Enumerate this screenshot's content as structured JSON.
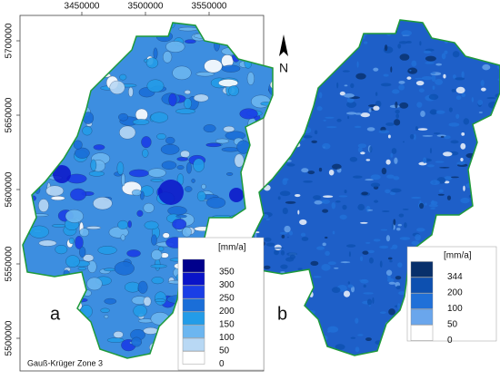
{
  "map_a": {
    "label": "a",
    "x_ticks": [
      "3450000",
      "3500000",
      "3550000"
    ],
    "y_ticks": [
      "5700000",
      "5650000",
      "5600000",
      "5550000",
      "5500000"
    ],
    "legend": {
      "unit": "[mm/a]",
      "classes": [
        {
          "label": "350",
          "color": "#00008c"
        },
        {
          "label": "300",
          "color": "#0a14c8"
        },
        {
          "label": "250",
          "color": "#1a3ee6"
        },
        {
          "label": "200",
          "color": "#1a6ed8"
        },
        {
          "label": "150",
          "color": "#239ce8"
        },
        {
          "label": "100",
          "color": "#6cb6f0"
        },
        {
          "label": "50",
          "color": "#b8d8f4"
        },
        {
          "label": "0",
          "color": "#ffffff"
        }
      ]
    }
  },
  "map_b": {
    "label": "b",
    "legend": {
      "unit": "[mm/a]",
      "classes": [
        {
          "label": "344",
          "color": "#08306b"
        },
        {
          "label": "200",
          "color": "#0d50b0"
        },
        {
          "label": "100",
          "color": "#2070d8"
        },
        {
          "label": "50",
          "color": "#6aa6ec"
        },
        {
          "label": "0",
          "color": "#ffffff"
        }
      ]
    }
  },
  "north": "N",
  "projection": "Gauß-Krüger Zone 3"
}
